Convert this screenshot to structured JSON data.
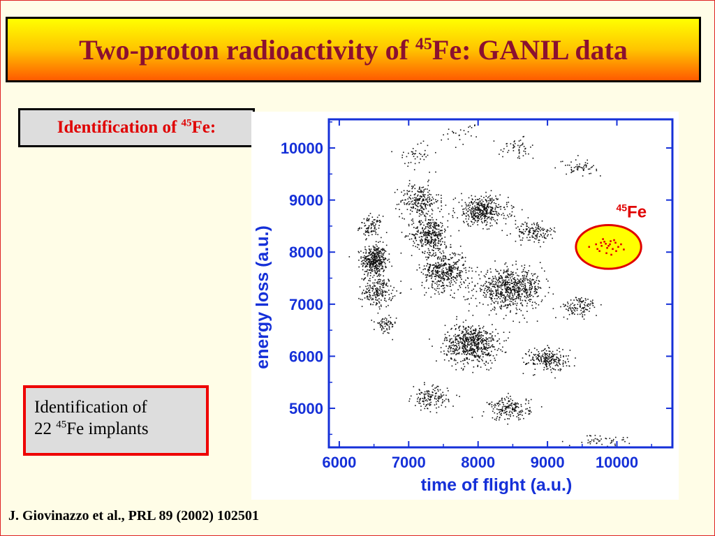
{
  "header": {
    "title_pre": "Two-proton radioactivity of ",
    "title_sup": "45",
    "title_post": "Fe: GANIL data"
  },
  "identification": {
    "text_pre": "Identification of ",
    "text_sup": "45",
    "text_post": "Fe:"
  },
  "implants": {
    "line1": "Identification of",
    "line2_pre": "22 ",
    "line2_sup": "45",
    "line2_post": "Fe implants"
  },
  "citation": "J. Giovinazzo et al., PRL 89 (2002) 102501",
  "colors": {
    "axis": "#1530d8",
    "highlight_fill": "#ffff00",
    "highlight_stroke": "#e00000",
    "title_text": "#8b1030"
  },
  "chart_data": {
    "type": "scatter",
    "title": "",
    "xlabel": "time of flight (a.u.)",
    "ylabel": "energy loss (a.u.)",
    "xlim": [
      5850,
      10800
    ],
    "ylim": [
      4250,
      10550
    ],
    "xticks": [
      6000,
      7000,
      8000,
      9000,
      10000
    ],
    "yticks": [
      5000,
      6000,
      7000,
      8000,
      9000,
      10000
    ],
    "xtick_labels": [
      "6000",
      "7000",
      "8000",
      "9000",
      "10000"
    ],
    "ytick_labels": [
      "5000",
      "6000",
      "7000",
      "8000",
      "9000",
      "10000"
    ],
    "grid": false,
    "annotation": {
      "sup": "45",
      "text": "Fe",
      "x": 10050,
      "y": 8750
    },
    "highlight": {
      "cx": 9880,
      "cy": 8100,
      "rx": 470,
      "ry": 420
    },
    "clusters": [
      {
        "x": 6500,
        "y": 7850,
        "sx": 90,
        "sy": 150,
        "n": 380
      },
      {
        "x": 6450,
        "y": 8500,
        "sx": 80,
        "sy": 100,
        "n": 90
      },
      {
        "x": 6550,
        "y": 7250,
        "sx": 110,
        "sy": 150,
        "n": 200
      },
      {
        "x": 6650,
        "y": 6600,
        "sx": 80,
        "sy": 90,
        "n": 60
      },
      {
        "x": 7150,
        "y": 9000,
        "sx": 140,
        "sy": 160,
        "n": 230
      },
      {
        "x": 7300,
        "y": 8350,
        "sx": 130,
        "sy": 170,
        "n": 330
      },
      {
        "x": 7500,
        "y": 7650,
        "sx": 160,
        "sy": 190,
        "n": 420
      },
      {
        "x": 7900,
        "y": 6250,
        "sx": 190,
        "sy": 190,
        "n": 620
      },
      {
        "x": 8050,
        "y": 8800,
        "sx": 190,
        "sy": 140,
        "n": 400
      },
      {
        "x": 8450,
        "y": 7300,
        "sx": 240,
        "sy": 180,
        "n": 680
      },
      {
        "x": 9000,
        "y": 5950,
        "sx": 150,
        "sy": 110,
        "n": 220
      },
      {
        "x": 8450,
        "y": 5000,
        "sx": 150,
        "sy": 110,
        "n": 180
      },
      {
        "x": 7300,
        "y": 5200,
        "sx": 130,
        "sy": 110,
        "n": 140
      },
      {
        "x": 8800,
        "y": 8400,
        "sx": 150,
        "sy": 100,
        "n": 140
      },
      {
        "x": 9450,
        "y": 6950,
        "sx": 130,
        "sy": 100,
        "n": 110
      },
      {
        "x": 9450,
        "y": 9650,
        "sx": 130,
        "sy": 70,
        "n": 55
      },
      {
        "x": 8550,
        "y": 10000,
        "sx": 130,
        "sy": 90,
        "n": 50
      },
      {
        "x": 7100,
        "y": 9900,
        "sx": 120,
        "sy": 120,
        "n": 40
      },
      {
        "x": 7800,
        "y": 10300,
        "sx": 150,
        "sy": 100,
        "n": 25
      },
      {
        "x": 9800,
        "y": 4400,
        "sx": 250,
        "sy": 60,
        "n": 45
      }
    ],
    "highlight_points": [
      [
        9700,
        8150
      ],
      [
        9780,
        8120
      ],
      [
        9820,
        8200
      ],
      [
        9860,
        8080
      ],
      [
        9900,
        8150
      ],
      [
        9940,
        8060
      ],
      [
        9980,
        8180
      ],
      [
        10020,
        8100
      ],
      [
        9750,
        8020
      ],
      [
        9850,
        7980
      ],
      [
        9920,
        7950
      ],
      [
        9800,
        8250
      ],
      [
        9960,
        8230
      ],
      [
        10060,
        8150
      ],
      [
        9880,
        8120
      ],
      [
        9600,
        8100
      ],
      [
        9720,
        8060
      ],
      [
        10100,
        8050
      ],
      [
        9840,
        8160
      ],
      [
        9990,
        8020
      ],
      [
        9910,
        8210
      ],
      [
        9770,
        8180
      ]
    ]
  }
}
